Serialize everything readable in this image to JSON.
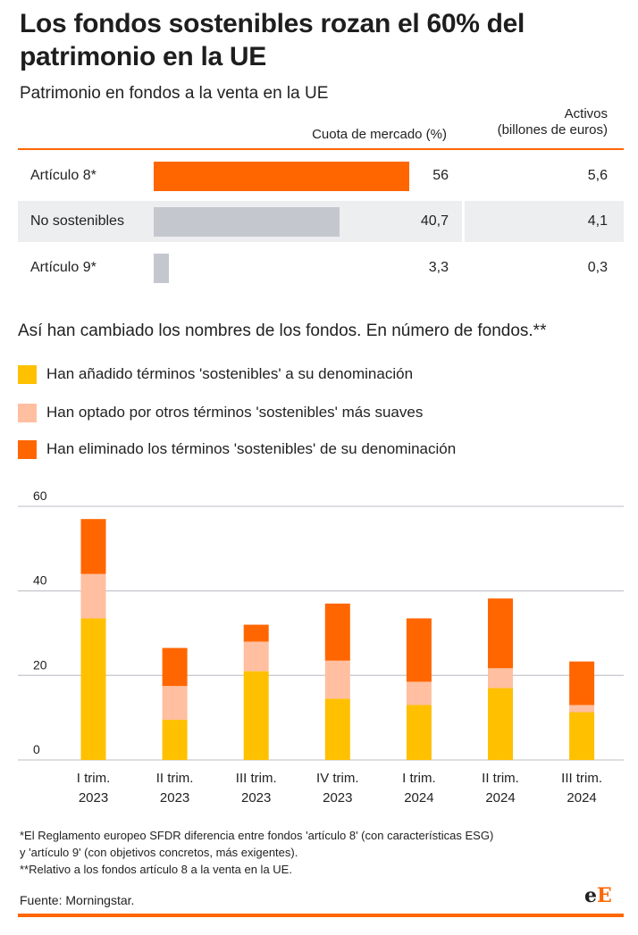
{
  "title": "Los fondos sostenibles rozan el 60% del patrimonio en la UE",
  "subtitle": "Patrimonio en fondos a la venta en la UE",
  "table": {
    "col_share": "Cuota de mercado (%)",
    "col_assets_line1": "Activos",
    "col_assets_line2": "(billones de euros)",
    "rows": [
      {
        "label": "Artículo 8*",
        "share": 56,
        "share_text": "56",
        "assets_text": "5,6",
        "color": "#ff6600"
      },
      {
        "label": "No sostenibles",
        "share": 40.7,
        "share_text": "40,7",
        "assets_text": "4,1",
        "color": "#c4c8ce"
      },
      {
        "label": "Artículo 9*",
        "share": 3.3,
        "share_text": "3,3",
        "assets_text": "0,3",
        "color": "#c4c8ce"
      }
    ]
  },
  "section_title": "Así han cambiado los nombres de los fondos. En número de fondos.**",
  "legend": [
    {
      "label": "Han añadido términos 'sostenibles' a su denominación",
      "color": "#ffc000"
    },
    {
      "label": "Han optado por otros términos 'sostenibles' más suaves",
      "color": "#ffbfa0"
    },
    {
      "label": "Han eliminado los términos 'sostenibles' de su denominación",
      "color": "#ff6600"
    }
  ],
  "chart_data": {
    "type": "bar",
    "stacked": true,
    "categories": [
      [
        "I trim.",
        "2023"
      ],
      [
        "II trim.",
        "2023"
      ],
      [
        "III trim.",
        "2023"
      ],
      [
        "IV trim.",
        "2023"
      ],
      [
        "I trim.",
        "2024"
      ],
      [
        "II trim.",
        "2024"
      ],
      [
        "III trim.",
        "2024"
      ]
    ],
    "series": [
      {
        "name": "Han añadido términos 'sostenibles' a su denominación",
        "color": "#ffc000",
        "values": [
          33.5,
          9.5,
          21,
          14.5,
          13,
          17,
          11.3
        ]
      },
      {
        "name": "Han optado por otros términos 'sostenibles' más suaves",
        "color": "#ffbfa0",
        "values": [
          10.5,
          8,
          7,
          9,
          5.5,
          4.7,
          1.7
        ]
      },
      {
        "name": "Han eliminado los términos 'sostenibles' de su denominación",
        "color": "#ff6600",
        "values": [
          13,
          9,
          4,
          13.5,
          15,
          16.5,
          10.3
        ]
      }
    ],
    "ylim": [
      0,
      60
    ],
    "yticks": [
      0,
      20,
      40,
      60
    ],
    "grid": true
  },
  "notes": [
    "*El Reglamento europeo SFDR diferencia entre fondos 'artículo 8' (con características ESG)",
    "y 'artículo 9' (con objetivos concretos, más exigentes).",
    "**Relativo a los fondos artículo 8 a la venta en la UE."
  ],
  "source": "Fuente: Morningstar.",
  "logo": {
    "part1": "e",
    "part2": "E"
  }
}
